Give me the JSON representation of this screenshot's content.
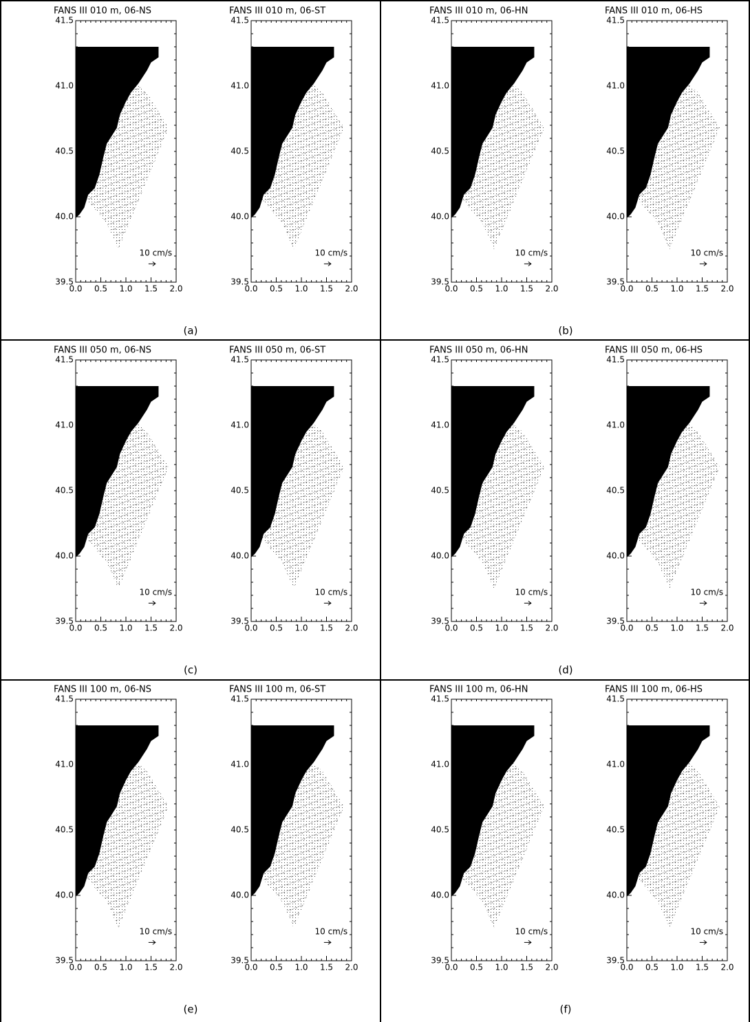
{
  "chart_data": [
    {
      "type": "quiver",
      "title": "FANS III 010 m, 06-NS",
      "annotation": "10 cm/s",
      "xlim": [
        0,
        2
      ],
      "ylim": [
        39.5,
        41.5
      ],
      "xticks": [
        {
          "value": 0,
          "label": "0.0"
        },
        0.5,
        {
          "value": 1,
          "label": "1.0"
        },
        1.5,
        {
          "value": 2,
          "label": "2.0"
        }
      ],
      "yticks": [
        39.5,
        {
          "value": 40,
          "label": "40.0"
        },
        40.5,
        {
          "value": 41,
          "label": "41.0"
        },
        41.5
      ]
    },
    {
      "type": "quiver",
      "title": "FANS III 010 m, 06-ST",
      "annotation": "10 cm/s",
      "xlim": [
        0,
        2
      ],
      "ylim": [
        39.5,
        41.5
      ],
      "xticks": [
        {
          "value": 0,
          "label": "0.0"
        },
        0.5,
        {
          "value": 1,
          "label": "1.0"
        },
        1.5,
        {
          "value": 2,
          "label": "2.0"
        }
      ],
      "yticks": [
        39.5,
        {
          "value": 40,
          "label": "40.0"
        },
        40.5,
        {
          "value": 41,
          "label": "41.0"
        },
        41.5
      ]
    },
    {
      "type": "quiver",
      "title": "FANS III 010 m, 06-HN",
      "annotation": "10 cm/s",
      "xlim": [
        0,
        2
      ],
      "ylim": [
        39.5,
        41.5
      ],
      "xticks": [
        {
          "value": 0,
          "label": "0.0"
        },
        0.5,
        {
          "value": 1,
          "label": "1.0"
        },
        1.5,
        {
          "value": 2,
          "label": "2.0"
        }
      ],
      "yticks": [
        39.5,
        {
          "value": 40,
          "label": "40.0"
        },
        40.5,
        {
          "value": 41,
          "label": "41.0"
        },
        41.5
      ]
    },
    {
      "type": "quiver",
      "title": "FANS III 010 m, 06-HS",
      "annotation": "10 cm/s",
      "xlim": [
        0,
        2
      ],
      "ylim": [
        39.5,
        41.5
      ],
      "xticks": [
        {
          "value": 0,
          "label": "0.0"
        },
        0.5,
        {
          "value": 1,
          "label": "1.0"
        },
        1.5,
        {
          "value": 2,
          "label": "2.0"
        }
      ],
      "yticks": [
        39.5,
        {
          "value": 40,
          "label": "40.0"
        },
        40.5,
        {
          "value": 41,
          "label": "41.0"
        },
        41.5
      ]
    },
    {
      "type": "quiver",
      "title": "FANS III 050 m, 06-NS",
      "annotation": "10 cm/s",
      "xlim": [
        0,
        2
      ],
      "ylim": [
        39.5,
        41.5
      ],
      "xticks": [
        {
          "value": 0,
          "label": "0.0"
        },
        0.5,
        {
          "value": 1,
          "label": "1.0"
        },
        1.5,
        {
          "value": 2,
          "label": "2.0"
        }
      ],
      "yticks": [
        39.5,
        {
          "value": 40,
          "label": "40.0"
        },
        40.5,
        {
          "value": 41,
          "label": "41.0"
        },
        41.5
      ]
    },
    {
      "type": "quiver",
      "title": "FANS III 050 m, 06-ST",
      "annotation": "10 cm/s",
      "xlim": [
        0,
        2
      ],
      "ylim": [
        39.5,
        41.5
      ],
      "xticks": [
        {
          "value": 0,
          "label": "0.0"
        },
        0.5,
        {
          "value": 1,
          "label": "1.0"
        },
        1.5,
        {
          "value": 2,
          "label": "2.0"
        }
      ],
      "yticks": [
        39.5,
        {
          "value": 40,
          "label": "40.0"
        },
        40.5,
        {
          "value": 41,
          "label": "41.0"
        },
        41.5
      ]
    },
    {
      "type": "quiver",
      "title": "FANS III 050 m, 06-HN",
      "annotation": "10 cm/s",
      "xlim": [
        0,
        2
      ],
      "ylim": [
        39.5,
        41.5
      ],
      "xticks": [
        {
          "value": 0,
          "label": "0.0"
        },
        0.5,
        {
          "value": 1,
          "label": "1.0"
        },
        1.5,
        {
          "value": 2,
          "label": "2.0"
        }
      ],
      "yticks": [
        39.5,
        {
          "value": 40,
          "label": "40.0"
        },
        40.5,
        {
          "value": 41,
          "label": "41.0"
        },
        41.5
      ]
    },
    {
      "type": "quiver",
      "title": "FANS III 050 m, 06-HS",
      "annotation": "10 cm/s",
      "xlim": [
        0,
        2
      ],
      "ylim": [
        39.5,
        41.5
      ],
      "xticks": [
        {
          "value": 0,
          "label": "0.0"
        },
        0.5,
        {
          "value": 1,
          "label": "1.0"
        },
        1.5,
        {
          "value": 2,
          "label": "2.0"
        }
      ],
      "yticks": [
        39.5,
        {
          "value": 40,
          "label": "40.0"
        },
        40.5,
        {
          "value": 41,
          "label": "41.0"
        },
        41.5
      ]
    },
    {
      "type": "quiver",
      "title": "FANS III 100 m, 06-NS",
      "annotation": "10 cm/s",
      "xlim": [
        0,
        2
      ],
      "ylim": [
        39.5,
        41.5
      ],
      "xticks": [
        {
          "value": 0,
          "label": "0.0"
        },
        0.5,
        {
          "value": 1,
          "label": "1.0"
        },
        1.5,
        {
          "value": 2,
          "label": "2.0"
        }
      ],
      "yticks": [
        39.5,
        {
          "value": 40,
          "label": "40.0"
        },
        40.5,
        {
          "value": 41,
          "label": "41.0"
        },
        41.5
      ]
    },
    {
      "type": "quiver",
      "title": "FANS III 100 m, 06-ST",
      "annotation": "10 cm/s",
      "xlim": [
        0,
        2
      ],
      "ylim": [
        39.5,
        41.5
      ],
      "xticks": [
        {
          "value": 0,
          "label": "0.0"
        },
        0.5,
        {
          "value": 1,
          "label": "1.0"
        },
        1.5,
        {
          "value": 2,
          "label": "2.0"
        }
      ],
      "yticks": [
        39.5,
        {
          "value": 40,
          "label": "40.0"
        },
        40.5,
        {
          "value": 41,
          "label": "41.0"
        },
        41.5
      ]
    },
    {
      "type": "quiver",
      "title": "FANS III 100 m, 06-HN",
      "annotation": "10 cm/s",
      "xlim": [
        0,
        2
      ],
      "ylim": [
        39.5,
        41.5
      ],
      "xticks": [
        {
          "value": 0,
          "label": "0.0"
        },
        0.5,
        {
          "value": 1,
          "label": "1.0"
        },
        1.5,
        {
          "value": 2,
          "label": "2.0"
        }
      ],
      "yticks": [
        39.5,
        {
          "value": 40,
          "label": "40.0"
        },
        40.5,
        {
          "value": 41,
          "label": "41.0"
        },
        41.5
      ]
    },
    {
      "type": "quiver",
      "title": "FANS III 100 m, 06-HS",
      "annotation": "10 cm/s",
      "xlim": [
        0,
        2
      ],
      "ylim": [
        39.5,
        41.5
      ],
      "xticks": [
        {
          "value": 0,
          "label": "0.0"
        },
        0.5,
        {
          "value": 1,
          "label": "1.0"
        },
        1.5,
        {
          "value": 2,
          "label": "2.0"
        }
      ],
      "yticks": [
        39.5,
        {
          "value": 40,
          "label": "40.0"
        },
        40.5,
        {
          "value": 41,
          "label": "41.0"
        },
        41.5
      ]
    }
  ],
  "panel_labels": [
    "(a)",
    "(b)",
    "(c)",
    "(d)",
    "(e)",
    "(f)"
  ]
}
